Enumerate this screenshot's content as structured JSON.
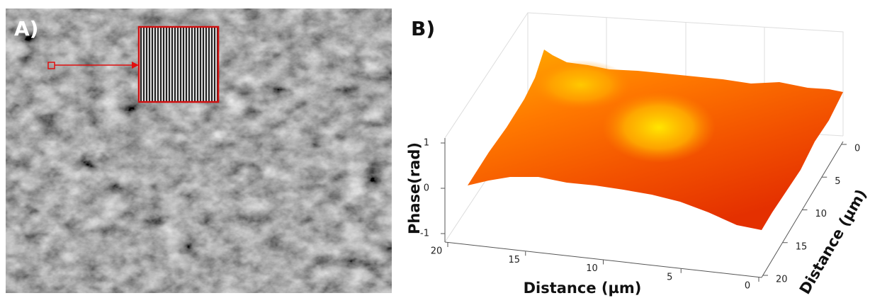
{
  "panels": [
    {
      "label": "A)"
    },
    {
      "label": "B)",
      "z_label": "Phase(rad)",
      "x_label": "Distance (µm)",
      "y_label": "Distance (µm)",
      "z_ticks": [
        1,
        0,
        -1
      ],
      "x_ticks": [
        20,
        15,
        10,
        5,
        0
      ],
      "y_ticks": [
        0,
        5,
        10,
        15,
        20
      ]
    }
  ]
}
